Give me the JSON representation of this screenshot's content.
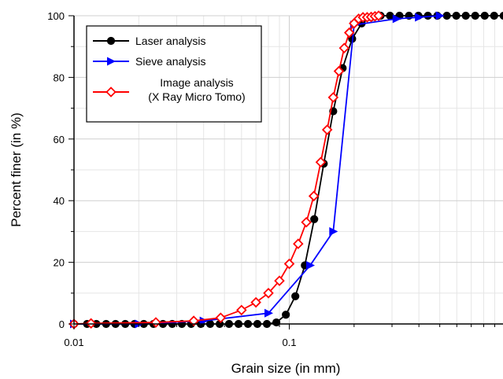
{
  "chart_data": {
    "type": "scatter",
    "title": "",
    "xlabel": "Grain size (in mm)",
    "ylabel": "Percent finer (in %)",
    "xscale": "log",
    "xlim": [
      0.01,
      1.0
    ],
    "ylim": [
      0,
      100
    ],
    "x_ticks": [
      0.01,
      0.1
    ],
    "x_tick_labels": [
      "0.01",
      "0.1"
    ],
    "y_ticks": [
      0,
      20,
      40,
      60,
      80,
      100
    ],
    "y_tick_labels": [
      "0",
      "20",
      "40",
      "60",
      "80",
      "100"
    ],
    "grid": true,
    "legend_position": "top-left",
    "series": [
      {
        "name": "Laser analysis",
        "color": "#000000",
        "marker": "circle",
        "x": [
          0.01,
          0.0115,
          0.0127,
          0.0141,
          0.0156,
          0.0173,
          0.0191,
          0.0211,
          0.0234,
          0.0259,
          0.0286,
          0.0317,
          0.035,
          0.0388,
          0.0429,
          0.0475,
          0.0525,
          0.0581,
          0.0643,
          0.0711,
          0.0787,
          0.0871,
          0.0964,
          0.1067,
          0.1181,
          0.1306,
          0.1446,
          0.16,
          0.177,
          0.1959,
          0.2168,
          0.2399,
          0.2655,
          0.2937,
          0.325,
          0.3597,
          0.398,
          0.4404,
          0.4873,
          0.5393,
          0.5967,
          0.6603,
          0.7307,
          0.8085,
          0.8947,
          0.99
        ],
        "y": [
          0,
          0,
          0,
          0,
          0,
          0,
          0,
          0,
          0,
          0,
          0,
          0,
          0,
          0,
          0,
          0,
          0,
          0,
          0,
          0,
          0,
          0.5,
          3,
          9,
          19,
          34,
          52,
          69,
          83,
          92.5,
          97.5,
          99.5,
          100,
          100,
          100,
          100,
          100,
          100,
          100,
          100,
          100,
          100,
          100,
          100,
          100,
          100
        ]
      },
      {
        "name": "Sieve analysis",
        "color": "#0000ff",
        "marker": "triangle-right",
        "x": [
          0.01,
          0.02,
          0.04,
          0.08,
          0.125,
          0.16,
          0.2,
          0.315,
          0.4,
          0.5
        ],
        "y": [
          0,
          0,
          1,
          3.5,
          19,
          30,
          97,
          99,
          99.5,
          100
        ]
      },
      {
        "name": "Image analysis\n(X Ray Micro Tomo)",
        "name_lines": [
          "Image analysis",
          "(X Ray Micro Tomo)"
        ],
        "color": "#ff0000",
        "marker": "diamond-open",
        "x": [
          0.01,
          0.012,
          0.024,
          0.036,
          0.048,
          0.06,
          0.07,
          0.08,
          0.09,
          0.1,
          0.11,
          0.12,
          0.13,
          0.14,
          0.15,
          0.16,
          0.17,
          0.18,
          0.19,
          0.2,
          0.21,
          0.22,
          0.23,
          0.24,
          0.25,
          0.26
        ],
        "y": [
          0,
          0.2,
          0.5,
          1,
          2,
          4.5,
          7,
          10,
          14,
          19.5,
          26,
          33,
          41.5,
          52.5,
          63,
          73.5,
          82,
          89.5,
          94.5,
          97.5,
          99,
          99.5,
          99.5,
          99.6,
          99.8,
          100
        ]
      }
    ]
  }
}
